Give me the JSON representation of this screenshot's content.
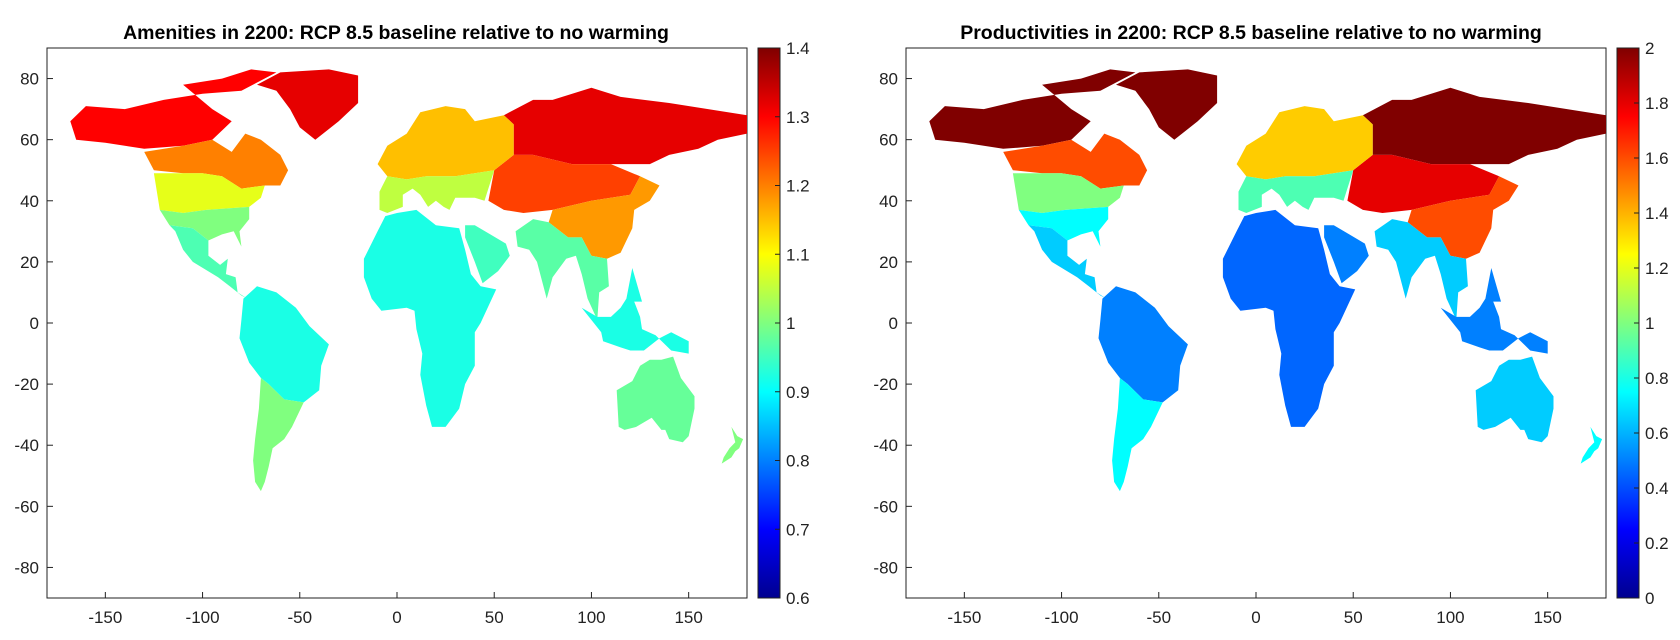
{
  "chart_data": [
    {
      "type": "heatmap",
      "subtype": "geographic choropleth map (lat/lon grid)",
      "title": "Amenities in 2200: RCP 8.5 baseline relative to no warming",
      "xlabel": "",
      "ylabel": "",
      "xlim": [
        -180,
        180
      ],
      "ylim": [
        -90,
        90
      ],
      "x_ticks": [
        -150,
        -100,
        -50,
        0,
        50,
        100,
        150
      ],
      "x_tick_labels": [
        "-150",
        "-100",
        "-50",
        "0",
        "50",
        "100",
        "150"
      ],
      "y_ticks": [
        80,
        60,
        40,
        20,
        0,
        -20,
        -40,
        -60,
        -80
      ],
      "y_tick_labels": [
        "80",
        "60",
        "40",
        "20",
        "0",
        "-20",
        "-40",
        "-60",
        "-80"
      ],
      "colormap": "jet",
      "clim": [
        0.6,
        1.4
      ],
      "colorbar_ticks": [
        1.4,
        1.3,
        1.2,
        1.1,
        1,
        0.9,
        0.8,
        0.7,
        0.6
      ],
      "colorbar_tick_labels": [
        "1.4",
        "1.3",
        "1.2",
        "1.1",
        "1",
        "0.9",
        "0.8",
        "0.7",
        "0.6"
      ],
      "regions": [
        {
          "region": "Arctic Canada / Alaska",
          "value": 1.3
        },
        {
          "region": "Greenland",
          "value": 1.32
        },
        {
          "region": "Northern Siberia",
          "value": 1.32
        },
        {
          "region": "Central Asia / Mongolia",
          "value": 1.25
        },
        {
          "region": "Eastern Canada",
          "value": 1.2
        },
        {
          "region": "Northern Europe",
          "value": 1.15
        },
        {
          "region": "Southern Europe / Mediterranean",
          "value": 1.05
        },
        {
          "region": "China",
          "value": 1.18
        },
        {
          "region": "Central USA",
          "value": 1.08
        },
        {
          "region": "Southern USA",
          "value": 1.0
        },
        {
          "region": "Mexico / Central America",
          "value": 0.96
        },
        {
          "region": "South America (tropics)",
          "value": 0.92
        },
        {
          "region": "Southern South America",
          "value": 1.0
        },
        {
          "region": "Africa",
          "value": 0.92
        },
        {
          "region": "Arabia",
          "value": 0.95
        },
        {
          "region": "India / Southeast Asia",
          "value": 0.97
        },
        {
          "region": "Indonesia / Maritime SE Asia",
          "value": 0.92
        },
        {
          "region": "Australia",
          "value": 0.98
        },
        {
          "region": "New Zealand",
          "value": 1.0
        }
      ]
    },
    {
      "type": "heatmap",
      "subtype": "geographic choropleth map (lat/lon grid)",
      "title": "Productivities in 2200: RCP 8.5 baseline relative to no warming",
      "xlabel": "",
      "ylabel": "",
      "xlim": [
        -180,
        180
      ],
      "ylim": [
        -90,
        90
      ],
      "x_ticks": [
        -150,
        -100,
        -50,
        0,
        50,
        100,
        150
      ],
      "x_tick_labels": [
        "-150",
        "-100",
        "-50",
        "0",
        "50",
        "100",
        "150"
      ],
      "y_ticks": [
        80,
        60,
        40,
        20,
        0,
        -20,
        -40,
        -60,
        -80
      ],
      "y_tick_labels": [
        "80",
        "60",
        "40",
        "20",
        "0",
        "-20",
        "-40",
        "-60",
        "-80"
      ],
      "colormap": "jet",
      "clim": [
        0,
        2
      ],
      "colorbar_ticks": [
        2,
        1.8,
        1.6,
        1.4,
        1.2,
        1,
        0.8,
        0.6,
        0.4,
        0.2,
        0
      ],
      "colorbar_tick_labels": [
        "2",
        "1.8",
        "1.6",
        "1.4",
        "1.2",
        "1",
        "0.8",
        "0.6",
        "0.4",
        "0.2",
        "0"
      ],
      "regions": [
        {
          "region": "Arctic Canada / Alaska",
          "value": 2.0
        },
        {
          "region": "Greenland",
          "value": 2.0
        },
        {
          "region": "Northern Siberia",
          "value": 2.0
        },
        {
          "region": "Central Asia / Mongolia",
          "value": 1.8
        },
        {
          "region": "Eastern Canada",
          "value": 1.6
        },
        {
          "region": "Northern Europe",
          "value": 1.35
        },
        {
          "region": "Southern Europe / Mediterranean",
          "value": 0.9
        },
        {
          "region": "China",
          "value": 1.6
        },
        {
          "region": "Central USA",
          "value": 1.0
        },
        {
          "region": "Southern USA",
          "value": 0.75
        },
        {
          "region": "Mexico / Central America",
          "value": 0.65
        },
        {
          "region": "South America (tropics)",
          "value": 0.5
        },
        {
          "region": "Southern South America",
          "value": 0.75
        },
        {
          "region": "Africa",
          "value": 0.45
        },
        {
          "region": "Arabia",
          "value": 0.5
        },
        {
          "region": "India / Southeast Asia",
          "value": 0.65
        },
        {
          "region": "Indonesia / Maritime SE Asia",
          "value": 0.5
        },
        {
          "region": "Australia",
          "value": 0.65
        },
        {
          "region": "New Zealand",
          "value": 0.75
        }
      ]
    }
  ]
}
